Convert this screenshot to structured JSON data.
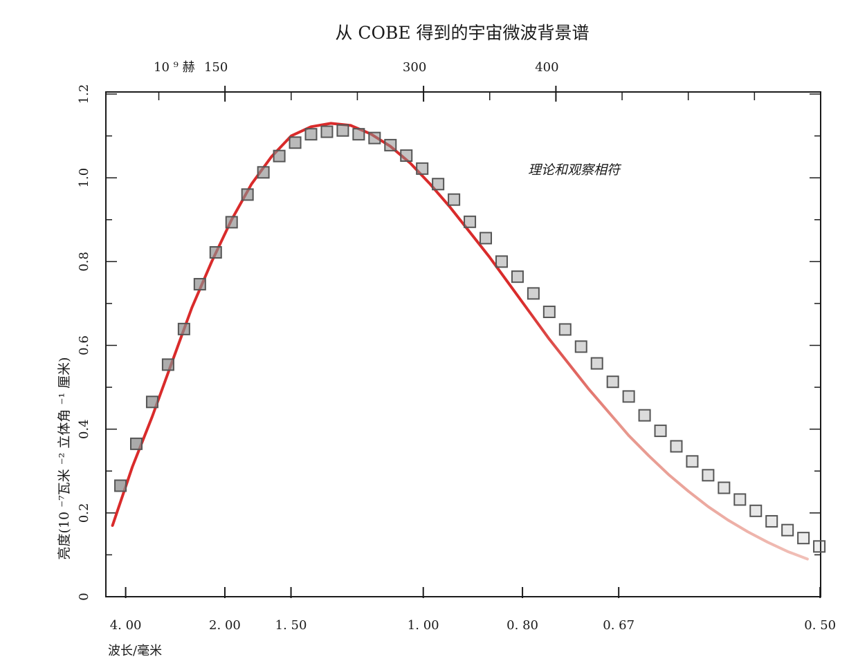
{
  "chart_data": {
    "type": "scatter",
    "title": "从 COBE 得到的宇宙微波背景谱",
    "top_axis": {
      "unit_label": "10 ⁹ 赫",
      "ticks": [
        {
          "label": "150",
          "value": 150
        },
        {
          "label": "300",
          "value": 300
        },
        {
          "label": "400",
          "value": 400
        }
      ],
      "range": [
        60,
        600
      ]
    },
    "xlabel": "波长/毫米",
    "x_ticks": [
      {
        "label": "4. 00",
        "value": 4.0
      },
      {
        "label": "2. 00",
        "value": 2.0
      },
      {
        "label": "1. 50",
        "value": 1.5
      },
      {
        "label": "1. 00",
        "value": 1.0
      },
      {
        "label": "0. 80",
        "value": 0.8
      },
      {
        "label": "0. 67",
        "value": 0.67
      },
      {
        "label": "0. 50",
        "value": 0.5
      }
    ],
    "ylabel": "亮度(10 ⁻⁷瓦米 ⁻² 立体角 ⁻¹ 厘米)",
    "ylim": [
      0,
      1.2
    ],
    "y_ticks": [
      {
        "label": "0",
        "value": 0
      },
      {
        "label": "0.2",
        "value": 0.2
      },
      {
        "label": "0.4",
        "value": 0.4
      },
      {
        "label": "0.6",
        "value": 0.6
      },
      {
        "label": "0.8",
        "value": 0.8
      },
      {
        "label": "1.0",
        "value": 1.0
      },
      {
        "label": "1.2",
        "value": 1.2
      }
    ],
    "annotation": "理论和观察相符",
    "series": [
      {
        "kind": "observed",
        "x_unit": "frequency (10^9 Hz)",
        "x": [
          71,
          83,
          95,
          107,
          119,
          131,
          143,
          155,
          167,
          179,
          191,
          203,
          215,
          227,
          239,
          251,
          263,
          275,
          287,
          299,
          311,
          323,
          335,
          347,
          359,
          371,
          383,
          395,
          407,
          419,
          431,
          443,
          455,
          467,
          479,
          491,
          503,
          515,
          527,
          539,
          551,
          563,
          575,
          587,
          599
        ],
        "values": [
          0.265,
          0.365,
          0.465,
          0.554,
          0.639,
          0.746,
          0.822,
          0.894,
          0.96,
          1.013,
          1.052,
          1.084,
          1.104,
          1.11,
          1.113,
          1.104,
          1.095,
          1.078,
          1.053,
          1.022,
          0.985,
          0.948,
          0.895,
          0.856,
          0.8,
          0.764,
          0.724,
          0.68,
          0.638,
          0.597,
          0.557,
          0.513,
          0.478,
          0.433,
          0.396,
          0.359,
          0.323,
          0.29,
          0.26,
          0.232,
          0.205,
          0.18,
          0.159,
          0.14,
          0.12
        ]
      },
      {
        "kind": "theory",
        "x_unit": "frequency (10^9 Hz)",
        "x": [
          65,
          80,
          95,
          110,
          125,
          140,
          155,
          170,
          185,
          200,
          215,
          230,
          245,
          260,
          275,
          290,
          305,
          320,
          335,
          350,
          365,
          380,
          395,
          410,
          425,
          440,
          455,
          470,
          485,
          500,
          515,
          530,
          545,
          560,
          575,
          590,
          605
        ],
        "values": [
          0.17,
          0.31,
          0.43,
          0.56,
          0.69,
          0.8,
          0.9,
          0.985,
          1.05,
          1.1,
          1.122,
          1.13,
          1.125,
          1.105,
          1.075,
          1.035,
          0.985,
          0.93,
          0.87,
          0.81,
          0.745,
          0.68,
          0.615,
          0.555,
          0.495,
          0.44,
          0.385,
          0.337,
          0.292,
          0.252,
          0.215,
          0.183,
          0.155,
          0.13,
          0.108,
          0.09,
          0.074
        ]
      }
    ],
    "colors": {
      "theory_line": "#d92b2b",
      "marker_fill": "#8c8c8c",
      "marker_edge": "#555555",
      "frame": "#1a1a1a"
    }
  }
}
